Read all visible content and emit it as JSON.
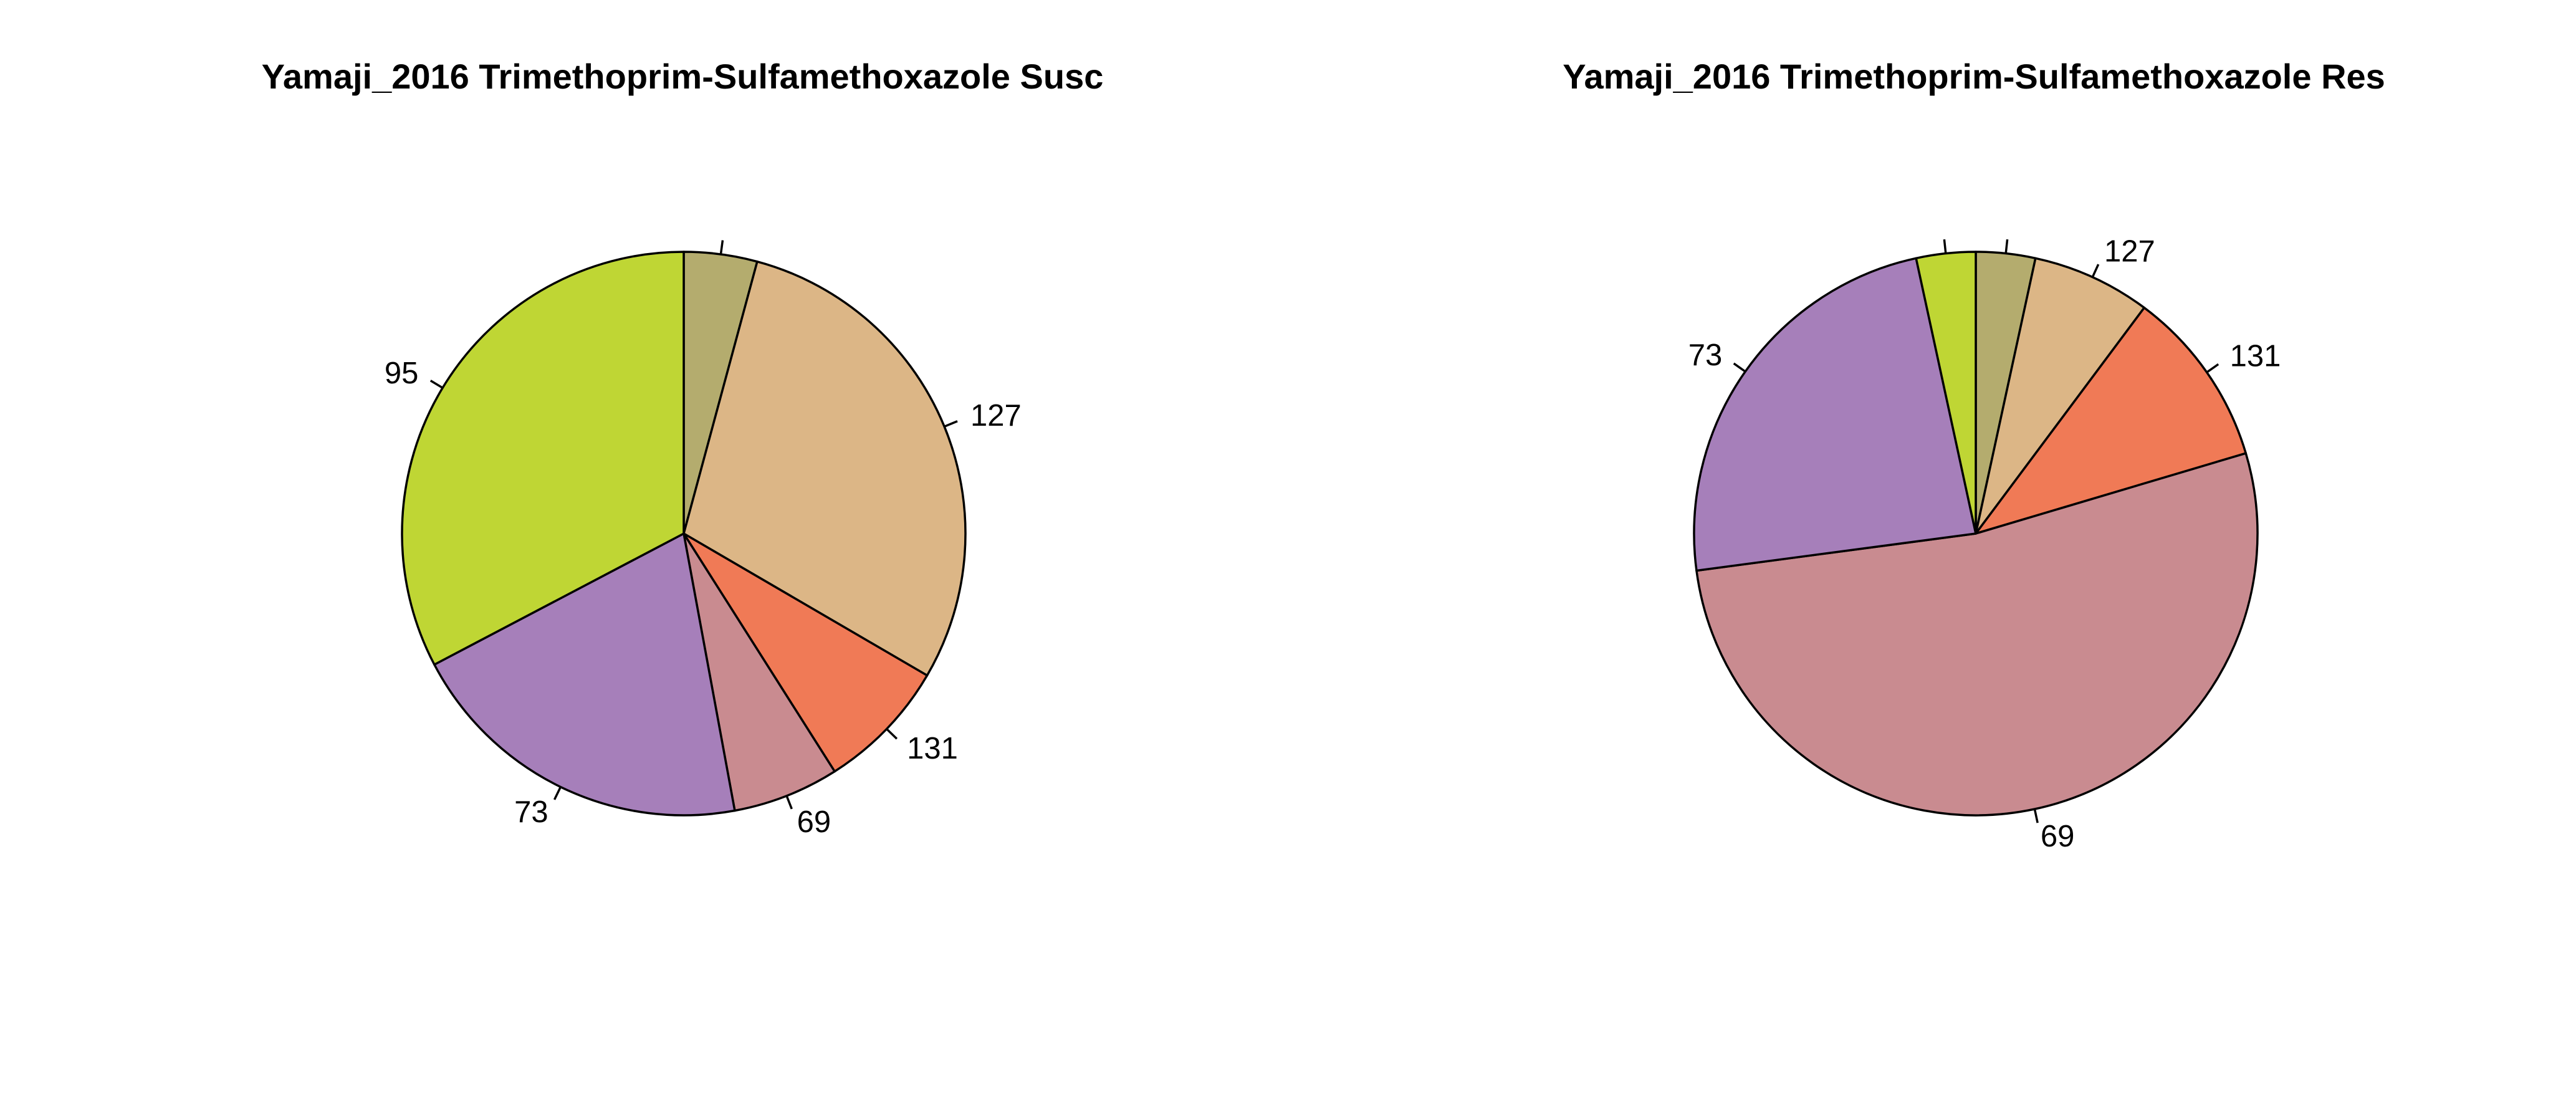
{
  "colors": {
    "olive": "#B4AC6E",
    "tan": "#DCB686",
    "orange": "#F07A56",
    "rose": "#C98B90",
    "purple": "#A67FBA",
    "lime": "#BFD634",
    "outline": "#000000"
  },
  "chart_data": [
    {
      "type": "pie",
      "title": "Yamaji_2016 Trimethoprim-Sulfamethoxazole Susc",
      "start_angle_deg": 90,
      "direction": "clockwise",
      "slices": [
        {
          "label": "",
          "value": 4.2,
          "color": "#B4AC6E"
        },
        {
          "label": "127",
          "value": 29.2,
          "color": "#DCB686"
        },
        {
          "label": "131",
          "value": 7.6,
          "color": "#F07A56"
        },
        {
          "label": "69",
          "value": 6.1,
          "color": "#C98B90"
        },
        {
          "label": "73",
          "value": 20.2,
          "color": "#A67FBA"
        },
        {
          "label": "95",
          "value": 32.7,
          "color": "#BFD634"
        }
      ]
    },
    {
      "type": "pie",
      "title": "Yamaji_2016 Trimethoprim-Sulfamethoxazole Res",
      "start_angle_deg": 90,
      "direction": "clockwise",
      "slices": [
        {
          "label": "",
          "value": 3.4,
          "color": "#B4AC6E"
        },
        {
          "label": "127",
          "value": 6.8,
          "color": "#DCB686"
        },
        {
          "label": "131",
          "value": 10.2,
          "color": "#F07A56"
        },
        {
          "label": "69",
          "value": 52.5,
          "color": "#C98B90"
        },
        {
          "label": "73",
          "value": 23.7,
          "color": "#A67FBA"
        },
        {
          "label": "",
          "value": 3.4,
          "color": "#BFD634"
        }
      ]
    }
  ]
}
